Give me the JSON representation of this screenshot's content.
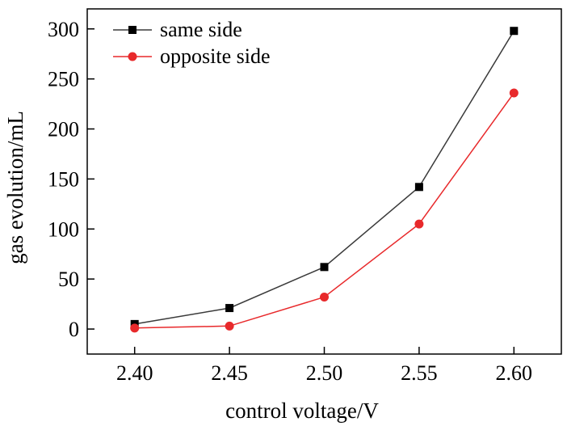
{
  "chart_data": {
    "type": "line",
    "title": "",
    "xlabel": "control voltage/V",
    "ylabel": "gas evolution/mL",
    "x": [
      2.4,
      2.45,
      2.5,
      2.55,
      2.6
    ],
    "xtick_labels": [
      "2.40",
      "2.45",
      "2.50",
      "2.55",
      "2.60"
    ],
    "xlim": [
      2.375,
      2.625
    ],
    "ylim": [
      -25,
      320
    ],
    "yticks": [
      0,
      50,
      100,
      150,
      200,
      250,
      300
    ],
    "ytick_labels": [
      "0",
      "50",
      "100",
      "150",
      "200",
      "250",
      "300"
    ],
    "grid": false,
    "legend_position": "top-left",
    "series": [
      {
        "name": "same side",
        "marker": "square",
        "color": "#000000",
        "line_color": "#3a3a3a",
        "values": [
          5,
          21,
          62,
          142,
          298
        ]
      },
      {
        "name": "opposite side",
        "marker": "circle",
        "color": "#e8292b",
        "line_color": "#e8292b",
        "values": [
          1,
          3,
          32,
          105,
          236
        ]
      }
    ]
  }
}
